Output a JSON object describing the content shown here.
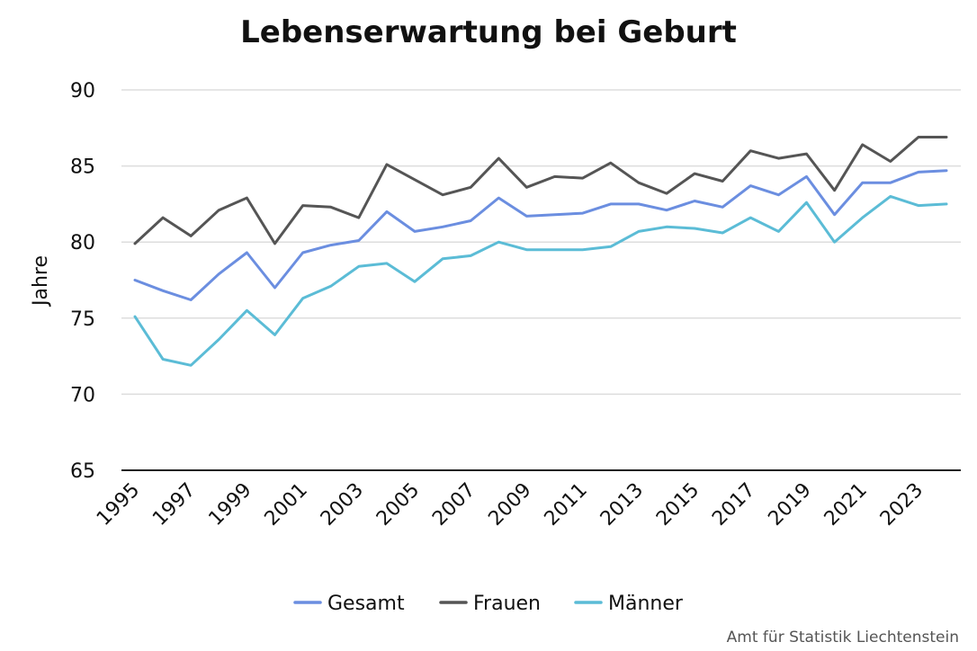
{
  "chart_data": {
    "type": "line",
    "title": "Lebenserwartung bei Geburt",
    "xlabel": "",
    "ylabel": "Jahre",
    "ylim": [
      65,
      90
    ],
    "yticks": [
      65,
      70,
      75,
      80,
      85,
      90
    ],
    "x": [
      1995,
      1996,
      1997,
      1998,
      1999,
      2000,
      2001,
      2002,
      2003,
      2004,
      2005,
      2006,
      2007,
      2008,
      2009,
      2010,
      2011,
      2012,
      2013,
      2014,
      2015,
      2016,
      2017,
      2018,
      2019,
      2020,
      2021,
      2022,
      2023,
      2024
    ],
    "xticks": [
      "1995",
      "1997",
      "1999",
      "2001",
      "2003",
      "2005",
      "2007",
      "2009",
      "2011",
      "2013",
      "2015",
      "2017",
      "2019",
      "2021",
      "2023"
    ],
    "grid": true,
    "legend_position": "bottom",
    "series": [
      {
        "name": "Gesamt",
        "color": "#6b8ee0",
        "values": [
          77.5,
          76.8,
          76.2,
          77.9,
          79.3,
          77.0,
          79.3,
          79.8,
          80.1,
          82.0,
          80.7,
          81.0,
          81.4,
          82.9,
          81.7,
          81.8,
          81.9,
          82.5,
          82.5,
          82.1,
          82.7,
          82.3,
          83.7,
          83.1,
          84.3,
          81.8,
          83.9,
          83.9,
          84.6,
          84.7
        ]
      },
      {
        "name": "Frauen",
        "color": "#555555",
        "values": [
          79.9,
          81.6,
          80.4,
          82.1,
          82.9,
          79.9,
          82.4,
          82.3,
          81.6,
          85.1,
          84.1,
          83.1,
          83.6,
          85.5,
          83.6,
          84.3,
          84.2,
          85.2,
          83.9,
          83.2,
          84.5,
          84.0,
          86.0,
          85.5,
          85.8,
          83.4,
          86.4,
          85.3,
          86.9,
          86.9
        ]
      },
      {
        "name": "Männer",
        "color": "#5bbcd6",
        "values": [
          75.1,
          72.3,
          71.9,
          73.6,
          75.5,
          73.9,
          76.3,
          77.1,
          78.4,
          78.6,
          77.4,
          78.9,
          79.1,
          80.0,
          79.5,
          79.5,
          79.5,
          79.7,
          80.7,
          81.0,
          80.9,
          80.6,
          81.6,
          80.7,
          82.6,
          80.0,
          81.6,
          83.0,
          82.4,
          82.5
        ]
      }
    ],
    "source": "Amt für Statistik Liechtenstein"
  }
}
